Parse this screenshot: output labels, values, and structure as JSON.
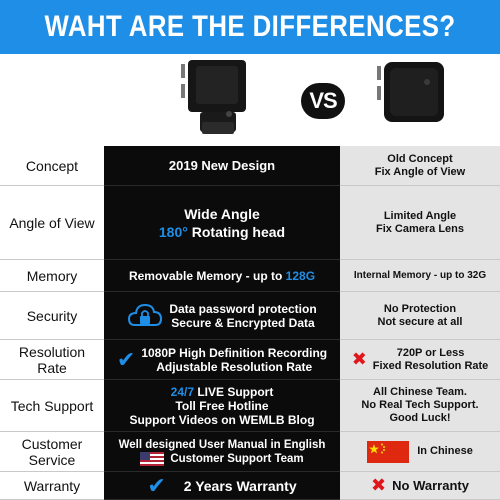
{
  "header": {
    "title": "WAHT ARE THE DIFFERENCES?"
  },
  "hero": {
    "vs_label": "VS"
  },
  "rows": {
    "concept": {
      "label": "Concept",
      "new": "2019 New Design",
      "old_lines": [
        "Old Concept",
        "Fix Angle of View"
      ]
    },
    "angle": {
      "label": "Angle of View",
      "new_line1": "Wide Angle",
      "new_deg": "180°",
      "new_rest": "Rotating head",
      "old_lines": [
        "Limited Angle",
        "Fix Camera Lens"
      ]
    },
    "memory": {
      "label": "Memory",
      "new_prefix": "Removable Memory - up to ",
      "new_highlight": "128G",
      "old": "Internal Memory - up to 32G"
    },
    "security": {
      "label": "Security",
      "new_lines": [
        "Data password protection",
        "Secure & Encrypted Data"
      ],
      "old_lines": [
        "No Protection",
        "Not secure at all"
      ],
      "icon": "cloud-lock-icon"
    },
    "resolution": {
      "label_lines": [
        "Resolution",
        "Rate"
      ],
      "new_lines": [
        "1080P High Definition Recording",
        "Adjustable Resolution Rate"
      ],
      "old_lines": [
        "720P or Less",
        "Fixed Resolution Rate"
      ]
    },
    "support": {
      "label": "Tech Support",
      "new_highlight": "24/7",
      "new_line1_rest": " LIVE Support",
      "new_lines": [
        "Toll Free Hotline",
        "Support Videos on WEMLB Blog"
      ],
      "old_lines": [
        "All Chinese Team.",
        "No Real Tech Support.",
        "Good Luck!"
      ]
    },
    "service": {
      "label_lines": [
        "Customer",
        "Service"
      ],
      "new_lines": [
        "Well designed User Manual in English",
        "Customer Support Team"
      ],
      "old": "In Chinese"
    },
    "warranty": {
      "label": "Warranty",
      "new": "2 Years Warranty",
      "old": "No Warranty"
    }
  },
  "colors": {
    "accent_blue": "#1f8ee6",
    "new_column": "#0b0b0b",
    "old_column": "#e4e4e4",
    "cross_red": "#e0161b"
  }
}
